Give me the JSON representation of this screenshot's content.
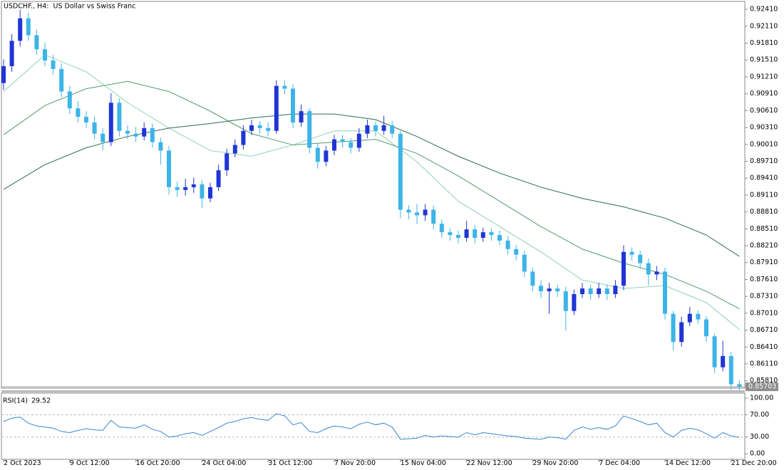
{
  "chart_data": {
    "type": "candlestick",
    "title": "USDCHF., H4:  US Dollar vs Swiss Franc",
    "up_color": "#1f35d6",
    "down_color": "#3cb4e8",
    "open": [
      0.911,
      0.914,
      0.9185,
      0.9225,
      0.9195,
      0.917,
      0.915,
      0.9135,
      0.9095,
      0.9065,
      0.905,
      0.904,
      0.902,
      0.9005,
      0.9075,
      0.9025,
      0.902,
      0.9015,
      0.903,
      0.9005,
      0.899,
      0.8925,
      0.892,
      0.8925,
      0.893,
      0.8905,
      0.8925,
      0.8955,
      0.8985,
      0.9,
      0.9025,
      0.9035,
      0.903,
      0.9025,
      0.9105,
      0.91,
      0.904,
      0.906,
      0.8995,
      0.897,
      0.899,
      0.901,
      0.9005,
      0.8995,
      0.902,
      0.9035,
      0.9025,
      0.9035,
      0.902,
      0.8885,
      0.888,
      0.8875,
      0.8885,
      0.886,
      0.8845,
      0.884,
      0.8835,
      0.885,
      0.8835,
      0.8845,
      0.884,
      0.883,
      0.8815,
      0.8805,
      0.8775,
      0.875,
      0.874,
      0.8745,
      0.874,
      0.8705,
      0.8735,
      0.8745,
      0.8735,
      0.8745,
      0.8735,
      0.875,
      0.881,
      0.8805,
      0.879,
      0.877,
      0.8775,
      0.87,
      0.865,
      0.8685,
      0.87,
      0.869,
      0.866,
      0.8605,
      0.8625,
      0.8575
    ],
    "high": [
      0.9152,
      0.9197,
      0.924,
      0.9235,
      0.9205,
      0.9182,
      0.916,
      0.9145,
      0.9105,
      0.9078,
      0.906,
      0.905,
      0.903,
      0.9092,
      0.9083,
      0.9035,
      0.9032,
      0.904,
      0.9038,
      0.9013,
      0.8998,
      0.8935,
      0.894,
      0.8942,
      0.8938,
      0.8933,
      0.8965,
      0.8993,
      0.901,
      0.9035,
      0.9045,
      0.9042,
      0.904,
      0.9115,
      0.9115,
      0.9108,
      0.9072,
      0.9065,
      0.9003,
      0.8998,
      0.9018,
      0.9018,
      0.9012,
      0.903,
      0.9045,
      0.9042,
      0.9052,
      0.9043,
      0.9025,
      0.8893,
      0.8895,
      0.8895,
      0.8892,
      0.8868,
      0.8852,
      0.8848,
      0.8865,
      0.8858,
      0.8853,
      0.8852,
      0.8848,
      0.8838,
      0.8822,
      0.8812,
      0.8782,
      0.876,
      0.8755,
      0.8752,
      0.8748,
      0.8743,
      0.8755,
      0.8752,
      0.8755,
      0.8752,
      0.876,
      0.8822,
      0.8818,
      0.8812,
      0.8798,
      0.8785,
      0.8782,
      0.8705,
      0.8695,
      0.8712,
      0.8706,
      0.8696,
      0.8665,
      0.8652,
      0.8632,
      0.8582
    ],
    "low": [
      0.9098,
      0.913,
      0.9175,
      0.9185,
      0.916,
      0.914,
      0.9125,
      0.9085,
      0.9055,
      0.904,
      0.903,
      0.901,
      0.899,
      0.8998,
      0.9015,
      0.901,
      0.9005,
      0.9008,
      0.8995,
      0.8965,
      0.8912,
      0.8908,
      0.891,
      0.8915,
      0.8888,
      0.8898,
      0.8918,
      0.8945,
      0.8978,
      0.8992,
      0.9018,
      0.902,
      0.9015,
      0.902,
      0.909,
      0.903,
      0.9032,
      0.8985,
      0.8958,
      0.8962,
      0.8982,
      0.8995,
      0.8985,
      0.8988,
      0.9012,
      0.9015,
      0.9018,
      0.9012,
      0.887,
      0.8868,
      0.886,
      0.8865,
      0.885,
      0.8835,
      0.883,
      0.8825,
      0.8828,
      0.8825,
      0.8828,
      0.883,
      0.8822,
      0.8805,
      0.8795,
      0.8765,
      0.874,
      0.8728,
      0.87,
      0.873,
      0.867,
      0.8698,
      0.8728,
      0.8725,
      0.8728,
      0.8725,
      0.8728,
      0.8742,
      0.8795,
      0.878,
      0.875,
      0.876,
      0.869,
      0.8635,
      0.8642,
      0.8678,
      0.8682,
      0.865,
      0.8595,
      0.8598,
      0.8565,
      0.8563
    ],
    "close": [
      0.914,
      0.9185,
      0.9225,
      0.9195,
      0.917,
      0.915,
      0.9135,
      0.9095,
      0.9065,
      0.905,
      0.904,
      0.902,
      0.9005,
      0.9075,
      0.9025,
      0.902,
      0.9015,
      0.903,
      0.9005,
      0.899,
      0.8925,
      0.892,
      0.8925,
      0.893,
      0.8905,
      0.8925,
      0.8955,
      0.8985,
      0.9,
      0.9025,
      0.9035,
      0.903,
      0.9025,
      0.9105,
      0.91,
      0.904,
      0.906,
      0.8995,
      0.897,
      0.899,
      0.901,
      0.9005,
      0.8995,
      0.902,
      0.9035,
      0.9025,
      0.9035,
      0.902,
      0.8885,
      0.888,
      0.8875,
      0.8885,
      0.886,
      0.8845,
      0.884,
      0.8835,
      0.885,
      0.8835,
      0.8845,
      0.884,
      0.883,
      0.8815,
      0.8805,
      0.8775,
      0.875,
      0.874,
      0.8745,
      0.874,
      0.8705,
      0.8735,
      0.8745,
      0.8735,
      0.8745,
      0.8735,
      0.875,
      0.881,
      0.8805,
      0.879,
      0.877,
      0.8775,
      0.87,
      0.865,
      0.8685,
      0.87,
      0.869,
      0.866,
      0.8605,
      0.8625,
      0.8575,
      0.85703
    ],
    "overlay_x": [
      0,
      5,
      10,
      15,
      20,
      25,
      30,
      35,
      40,
      45,
      50,
      55,
      60,
      65,
      70,
      75,
      80,
      85,
      89
    ],
    "overlays": [
      {
        "color": "#8fd3b0",
        "values": [
          0.9095,
          0.916,
          0.913,
          0.9075,
          0.903,
          0.899,
          0.898,
          0.9,
          0.9025,
          0.9025,
          0.897,
          0.89,
          0.8855,
          0.881,
          0.876,
          0.8745,
          0.875,
          0.872,
          0.8672
        ]
      },
      {
        "color": "#4f9a6e",
        "values": [
          0.9018,
          0.907,
          0.91,
          0.9113,
          0.9095,
          0.906,
          0.902,
          0.9,
          0.9005,
          0.901,
          0.8985,
          0.8945,
          0.89,
          0.8855,
          0.8815,
          0.879,
          0.877,
          0.874,
          0.8709
        ]
      },
      {
        "color": "#2f6b4a",
        "values": [
          0.8921,
          0.8965,
          0.8995,
          0.9015,
          0.903,
          0.9038,
          0.9048,
          0.9055,
          0.9055,
          0.9045,
          0.9015,
          0.898,
          0.895,
          0.8925,
          0.8905,
          0.889,
          0.887,
          0.884,
          0.8802
        ]
      }
    ],
    "ylim": [
      0.8568,
      0.9255
    ],
    "yticks": [
      {
        "value": 0.9241,
        "label": "0.92410"
      },
      {
        "value": 0.9211,
        "label": "0.92110"
      },
      {
        "value": 0.9181,
        "label": "0.91810"
      },
      {
        "value": 0.9151,
        "label": "0.91510"
      },
      {
        "value": 0.9121,
        "label": "0.91210"
      },
      {
        "value": 0.9091,
        "label": "0.90910"
      },
      {
        "value": 0.9061,
        "label": "0.90610"
      },
      {
        "value": 0.9031,
        "label": "0.90310"
      },
      {
        "value": 0.9001,
        "label": "0.90010"
      },
      {
        "value": 0.8971,
        "label": "0.89710"
      },
      {
        "value": 0.8941,
        "label": "0.89410"
      },
      {
        "value": 0.8911,
        "label": "0.89110"
      },
      {
        "value": 0.8881,
        "label": "0.88810"
      },
      {
        "value": 0.8851,
        "label": "0.88510"
      },
      {
        "value": 0.8821,
        "label": "0.88210"
      },
      {
        "value": 0.8791,
        "label": "0.87910"
      },
      {
        "value": 0.8761,
        "label": "0.87610"
      },
      {
        "value": 0.8731,
        "label": "0.87310"
      },
      {
        "value": 0.8701,
        "label": "0.87010"
      },
      {
        "value": 0.8671,
        "label": "0.86710"
      },
      {
        "value": 0.8641,
        "label": "0.86410"
      },
      {
        "value": 0.8611,
        "label": "0.86110"
      },
      {
        "value": 0.8581,
        "label": "0.85810"
      }
    ],
    "xticks": [
      {
        "value": 0,
        "label": "2 Oct 2023"
      },
      {
        "value": 8,
        "label": "9 Oct 12:00"
      },
      {
        "value": 16,
        "label": "16 Oct 20:00"
      },
      {
        "value": 24,
        "label": "24 Oct 04:00"
      },
      {
        "value": 32,
        "label": "31 Oct 12:00"
      },
      {
        "value": 40,
        "label": "7 Nov 20:00"
      },
      {
        "value": 48,
        "label": "15 Nov 04:00"
      },
      {
        "value": 56,
        "label": "22 Nov 12:00"
      },
      {
        "value": 64,
        "label": "29 Nov 20:00"
      },
      {
        "value": 72,
        "label": "7 Dec 04:00"
      },
      {
        "value": 80,
        "label": "14 Dec 12:00"
      },
      {
        "value": 88,
        "label": "21 Dec 20:00"
      }
    ],
    "indicator": {
      "label": "RSI(14)",
      "color": "#3a86d4",
      "values": [
        58,
        64,
        66,
        55,
        50,
        48,
        46,
        40,
        38,
        42,
        45,
        43,
        42,
        60,
        48,
        47,
        46,
        52,
        44,
        40,
        30,
        32,
        36,
        38,
        33,
        40,
        47,
        55,
        58,
        63,
        65,
        62,
        60,
        72,
        68,
        52,
        56,
        40,
        38,
        45,
        50,
        48,
        45,
        53,
        57,
        52,
        55,
        48,
        26,
        27,
        28,
        33,
        30,
        32,
        31,
        30,
        38,
        34,
        38,
        36,
        34,
        32,
        31,
        28,
        27,
        26,
        30,
        29,
        26,
        42,
        48,
        44,
        47,
        44,
        50,
        68,
        63,
        58,
        52,
        55,
        38,
        30,
        42,
        46,
        43,
        36,
        28,
        38,
        32,
        29.52
      ],
      "ylim": [
        -10,
        109
      ],
      "yticks": [
        {
          "value": 100,
          "label": "100.00"
        },
        {
          "value": 70,
          "label": "70.00"
        },
        {
          "value": 30,
          "label": "30.00"
        },
        {
          "value": 0,
          "label": "0.00"
        }
      ],
      "levels": [
        70,
        30
      ]
    }
  }
}
